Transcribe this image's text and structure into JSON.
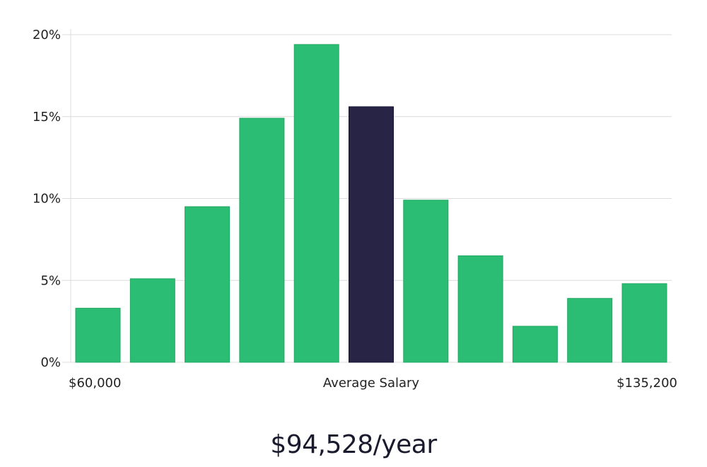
{
  "chart_data": {
    "type": "bar",
    "title": "",
    "xlabel": "Average Salary",
    "ylabel": "",
    "ylim": [
      0,
      20
    ],
    "y_ticks": [
      0,
      5,
      10,
      15,
      20
    ],
    "y_tick_labels": [
      "0%",
      "5%",
      "10%",
      "15%",
      "20%"
    ],
    "x_left_label": "$60,000",
    "x_center_label": "Average Salary",
    "x_right_label": "$135,200",
    "values": [
      3.3,
      5.1,
      9.5,
      14.9,
      19.4,
      15.6,
      9.9,
      6.5,
      2.2,
      3.9,
      4.8
    ],
    "highlight_index": 5,
    "colors": {
      "bar": "#2bbd73",
      "highlight": "#272446",
      "grid": "#dcdcdc"
    }
  },
  "salary_caption": "$94,528/year"
}
